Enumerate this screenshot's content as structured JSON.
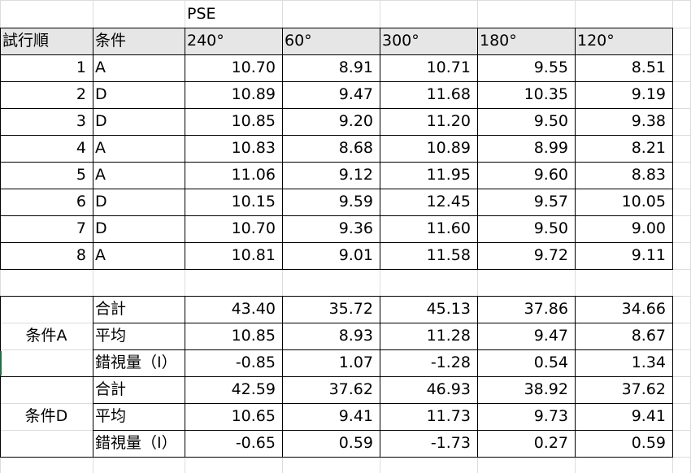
{
  "title": "PSE",
  "header": [
    "試行順",
    "条件",
    "240°",
    "60°",
    "300°",
    "180°",
    "120°"
  ],
  "rows": [
    {
      "trial": "1",
      "cond": "A",
      "v": [
        "10.70",
        "8.91",
        "10.71",
        "9.55",
        "8.51"
      ]
    },
    {
      "trial": "2",
      "cond": "D",
      "v": [
        "10.89",
        "9.47",
        "11.68",
        "10.35",
        "9.19"
      ]
    },
    {
      "trial": "3",
      "cond": "D",
      "v": [
        "10.85",
        "9.20",
        "11.20",
        "9.50",
        "9.38"
      ]
    },
    {
      "trial": "4",
      "cond": "A",
      "v": [
        "10.83",
        "8.68",
        "10.89",
        "8.99",
        "8.21"
      ]
    },
    {
      "trial": "5",
      "cond": "A",
      "v": [
        "11.06",
        "9.12",
        "11.95",
        "9.60",
        "8.83"
      ]
    },
    {
      "trial": "6",
      "cond": "D",
      "v": [
        "10.15",
        "9.59",
        "12.45",
        "9.57",
        "10.05"
      ]
    },
    {
      "trial": "7",
      "cond": "D",
      "v": [
        "10.70",
        "9.36",
        "11.60",
        "9.50",
        "9.00"
      ]
    },
    {
      "trial": "8",
      "cond": "A",
      "v": [
        "10.81",
        "9.01",
        "11.58",
        "9.72",
        "9.11"
      ]
    }
  ],
  "groups": [
    {
      "name": "条件A",
      "stats": [
        {
          "label": "合計",
          "v": [
            "43.40",
            "35.72",
            "45.13",
            "37.86",
            "34.66"
          ]
        },
        {
          "label": "平均",
          "v": [
            "10.85",
            "8.93",
            "11.28",
            "9.47",
            "8.67"
          ]
        },
        {
          "label": "錯視量（I）",
          "v": [
            "-0.85",
            "1.07",
            "-1.28",
            "0.54",
            "1.34"
          ]
        }
      ]
    },
    {
      "name": "条件D",
      "stats": [
        {
          "label": "合計",
          "v": [
            "42.59",
            "37.62",
            "46.93",
            "38.92",
            "37.62"
          ]
        },
        {
          "label": "平均",
          "v": [
            "10.65",
            "9.41",
            "11.73",
            "9.73",
            "9.41"
          ]
        },
        {
          "label": "錯視量（I）",
          "v": [
            "-0.65",
            "0.59",
            "-1.73",
            "0.27",
            "0.59"
          ]
        }
      ]
    }
  ]
}
